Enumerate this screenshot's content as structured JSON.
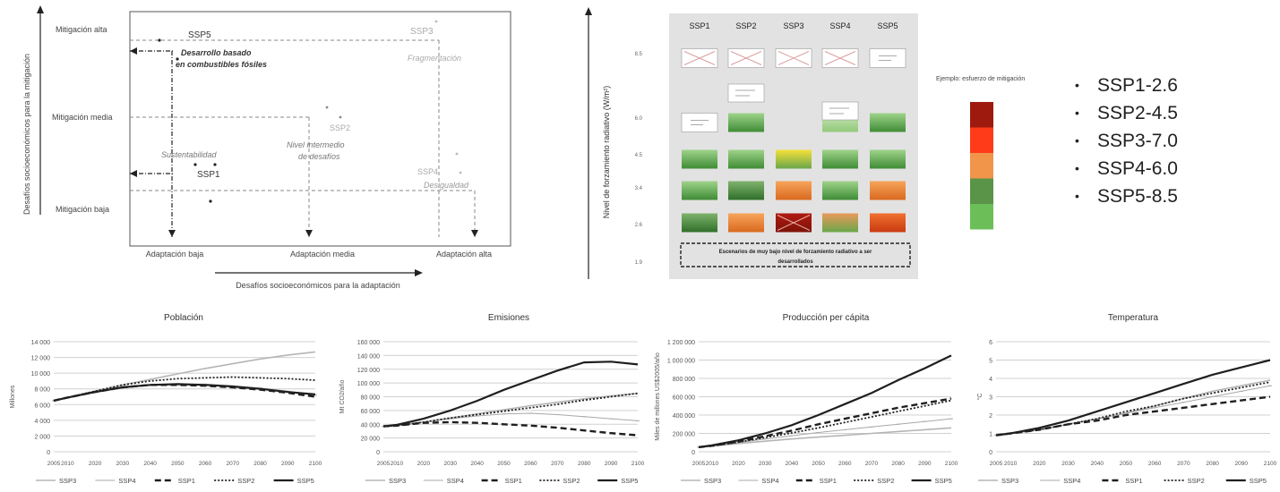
{
  "quadrant": {
    "y_axis_label": "Desafíos socioeconómicos para la mitigación",
    "x_axis_label": "Desafíos socioeconómicos para la adaptación",
    "y_levels": [
      "Mitigación alta",
      "Mitigación media",
      "Mitigación baja"
    ],
    "x_levels": [
      "Adaptación baja",
      "Adaptación media",
      "Adaptación alta"
    ],
    "scenarios": [
      {
        "code": "SSP5",
        "name": "Desarrollo basado en combustibles fósiles"
      },
      {
        "code": "SSP3",
        "name": "Fragmentación"
      },
      {
        "code": "SSP2",
        "name": "Nivel intermedio de desafíos"
      },
      {
        "code": "SSP1",
        "name": "Sustentabilidad"
      },
      {
        "code": "SSP4",
        "name": "Desigualdad"
      }
    ]
  },
  "matrix": {
    "columns": [
      "SSP1",
      "SSP2",
      "SSP3",
      "SSP4",
      "SSP5"
    ],
    "y_axis_label": "Nivel de forzamiento radiativo (W/m²)",
    "y_ticks": [
      "8.5",
      "6.0",
      "4.5",
      "3.4",
      "2.6",
      "1.9"
    ],
    "legend_title": "Ejemplo: esfuerzo de mitigación",
    "legend_colors": [
      "#9e1a0e",
      "#ff3b1a",
      "#f0954a",
      "#5a9448",
      "#6cbf58"
    ],
    "footer": "Escenarios de muy bajo nivel de forzamiento radiativo a ser desarrollados",
    "rows": [
      [
        "x",
        "x",
        "x",
        "x",
        "line"
      ],
      [
        "line",
        "g",
        "none",
        "lg",
        "g"
      ],
      [
        "g",
        "g",
        "y",
        "g",
        "g"
      ],
      [
        "g",
        "dg",
        "o",
        "g",
        "o"
      ],
      [
        "dg",
        "o",
        "xr",
        "mix",
        "or"
      ]
    ]
  },
  "bullets": [
    "SSP1-2.6",
    "SSP2-4.5",
    "SSP3-7.0",
    "SSP4-6.0",
    "SSP5-8.5"
  ],
  "colors": {
    "SSP3": "#b5b5b5",
    "SSP4": "#a8a8a8",
    "SSP1": "#1f1f1f",
    "SSP2": "#1f1f1f",
    "SSP5": "#1f1f1f",
    "grid": "#d0d0d0"
  },
  "chart_data": [
    {
      "type": "line",
      "title": "Población",
      "ylabel": "Millones",
      "x": [
        2005,
        2010,
        2020,
        2030,
        2040,
        2050,
        2060,
        2070,
        2080,
        2090,
        2100
      ],
      "x_tick_labels": [
        "2005",
        "2010",
        "2020",
        "2030",
        "2040",
        "2050",
        "2060",
        "2070",
        "2080",
        "2090",
        "2100"
      ],
      "ylim": [
        0,
        14000
      ],
      "y_ticks": [
        0,
        2000,
        4000,
        6000,
        8000,
        10000,
        12000,
        14000
      ],
      "y_tick_labels": [
        "0",
        "2 000",
        "4 000",
        "6 000",
        "8 000",
        "10 000",
        "12 000",
        "14 000"
      ],
      "series": [
        {
          "name": "SSP3",
          "values": [
            6500,
            6900,
            7700,
            8500,
            9200,
            9900,
            10600,
            11200,
            11800,
            12300,
            12700
          ]
        },
        {
          "name": "SSP4",
          "values": [
            6500,
            6900,
            7600,
            8200,
            8500,
            8600,
            8600,
            8400,
            8100,
            7700,
            7200
          ]
        },
        {
          "name": "SSP1",
          "values": [
            6500,
            6900,
            7600,
            8200,
            8500,
            8500,
            8400,
            8200,
            7900,
            7500,
            7000
          ]
        },
        {
          "name": "SSP2",
          "values": [
            6500,
            6900,
            7700,
            8500,
            9000,
            9300,
            9400,
            9500,
            9400,
            9300,
            9100
          ]
        },
        {
          "name": "SSP5",
          "values": [
            6500,
            6900,
            7600,
            8200,
            8500,
            8600,
            8500,
            8300,
            8000,
            7600,
            7300
          ]
        }
      ]
    },
    {
      "type": "line",
      "title": "Emisiones",
      "ylabel": "Mt CO2/año",
      "x": [
        2005,
        2010,
        2020,
        2030,
        2040,
        2050,
        2060,
        2070,
        2080,
        2090,
        2100
      ],
      "x_tick_labels": [
        "2005",
        "2010",
        "2020",
        "2030",
        "2040",
        "2050",
        "2060",
        "2070",
        "2080",
        "2090",
        "2100"
      ],
      "ylim": [
        0,
        160000
      ],
      "y_ticks": [
        0,
        20000,
        40000,
        60000,
        80000,
        100000,
        120000,
        140000,
        160000
      ],
      "y_tick_labels": [
        "0",
        "20 000",
        "40 000",
        "60 000",
        "80 000",
        "100 000",
        "120 000",
        "140 000",
        "160 000"
      ],
      "series": [
        {
          "name": "SSP3",
          "values": [
            37000,
            38000,
            43000,
            49000,
            55000,
            61000,
            67000,
            72000,
            77000,
            81000,
            85000
          ]
        },
        {
          "name": "SSP4",
          "values": [
            37000,
            38000,
            43000,
            48000,
            52000,
            55000,
            56000,
            54000,
            51000,
            48000,
            45000
          ]
        },
        {
          "name": "SSP1",
          "values": [
            37000,
            38000,
            42000,
            43000,
            42000,
            40000,
            38000,
            35000,
            31000,
            27000,
            24000
          ]
        },
        {
          "name": "SSP2",
          "values": [
            37000,
            38000,
            43000,
            49000,
            54000,
            59000,
            64000,
            69000,
            75000,
            80000,
            85000
          ]
        },
        {
          "name": "SSP5",
          "values": [
            37000,
            39000,
            48000,
            60000,
            74000,
            90000,
            104000,
            118000,
            130000,
            131000,
            127000
          ]
        }
      ]
    },
    {
      "type": "line",
      "title": "Producción per cápita",
      "ylabel": "Miles de millones US$2005/año",
      "x": [
        2005,
        2010,
        2020,
        2030,
        2040,
        2050,
        2060,
        2070,
        2080,
        2090,
        2100
      ],
      "x_tick_labels": [
        "2005",
        "2010",
        "2020",
        "2030",
        "2040",
        "2050",
        "2060",
        "2070",
        "2080",
        "2090",
        "2100"
      ],
      "ylim": [
        0,
        1200000
      ],
      "y_ticks": [
        0,
        200000,
        400000,
        600000,
        800000,
        1000000,
        1200000
      ],
      "y_tick_labels": [
        "0",
        "200 000",
        "400 000",
        "600 000",
        "800 000",
        "1 000 000",
        "1 200 000"
      ],
      "series": [
        {
          "name": "SSP3",
          "values": [
            50000,
            60000,
            90000,
            115000,
            140000,
            160000,
            180000,
            200000,
            220000,
            240000,
            260000
          ]
        },
        {
          "name": "SSP4",
          "values": [
            50000,
            62000,
            100000,
            140000,
            175000,
            210000,
            240000,
            270000,
            300000,
            330000,
            360000
          ]
        },
        {
          "name": "SSP1",
          "values": [
            50000,
            65000,
            110000,
            170000,
            230000,
            300000,
            360000,
            420000,
            480000,
            530000,
            580000
          ]
        },
        {
          "name": "SSP2",
          "values": [
            50000,
            63000,
            105000,
            155000,
            205000,
            260000,
            320000,
            380000,
            440000,
            500000,
            560000
          ]
        },
        {
          "name": "SSP5",
          "values": [
            50000,
            70000,
            125000,
            200000,
            290000,
            400000,
            520000,
            640000,
            780000,
            910000,
            1050000
          ]
        }
      ]
    },
    {
      "type": "line",
      "title": "Temperatura",
      "ylabel": "°C",
      "x": [
        2005,
        2010,
        2020,
        2030,
        2040,
        2050,
        2060,
        2070,
        2080,
        2090,
        2100
      ],
      "x_tick_labels": [
        "2005",
        "2010",
        "2020",
        "2030",
        "2040",
        "2050",
        "2060",
        "2070",
        "2080",
        "2090",
        "2100"
      ],
      "ylim": [
        0,
        6
      ],
      "y_ticks": [
        0,
        1,
        2,
        3,
        4,
        5,
        6
      ],
      "y_tick_labels": [
        "0",
        "1",
        "2",
        "3",
        "4",
        "5",
        "6"
      ],
      "series": [
        {
          "name": "SSP3",
          "values": [
            0.9,
            1.0,
            1.2,
            1.5,
            1.8,
            2.1,
            2.5,
            2.9,
            3.3,
            3.6,
            3.9
          ]
        },
        {
          "name": "SSP4",
          "values": [
            0.9,
            1.0,
            1.2,
            1.5,
            1.8,
            2.1,
            2.4,
            2.7,
            3.0,
            3.3,
            3.6
          ]
        },
        {
          "name": "SSP1",
          "values": [
            0.9,
            1.0,
            1.2,
            1.5,
            1.7,
            2.0,
            2.2,
            2.4,
            2.6,
            2.8,
            3.0
          ]
        },
        {
          "name": "SSP2",
          "values": [
            0.9,
            1.0,
            1.2,
            1.5,
            1.8,
            2.2,
            2.5,
            2.9,
            3.2,
            3.5,
            3.8
          ]
        },
        {
          "name": "SSP5",
          "values": [
            0.9,
            1.0,
            1.3,
            1.7,
            2.2,
            2.7,
            3.2,
            3.7,
            4.2,
            4.6,
            5.0
          ]
        }
      ]
    }
  ]
}
